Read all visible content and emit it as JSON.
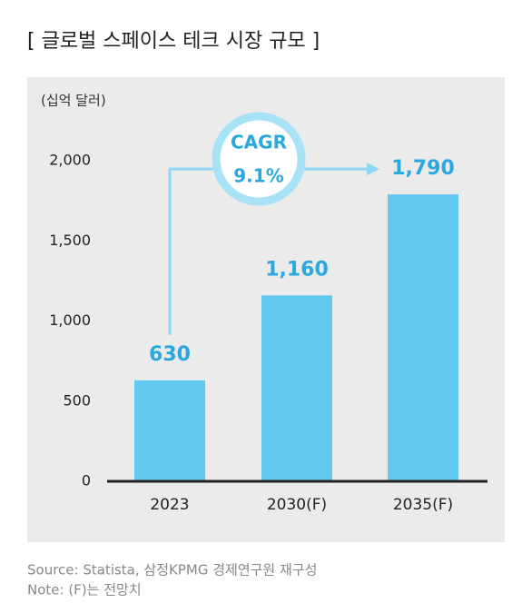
{
  "chart_data": {
    "type": "bar",
    "title": "[ 글로벌 스페이스 테크 시장 규모 ]",
    "y_label": "(십억 달러)",
    "categories": [
      "2023",
      "2030(F)",
      "2035(F)"
    ],
    "values": [
      630,
      1160,
      1790
    ],
    "value_labels": [
      "630",
      "1,160",
      "1,790"
    ],
    "color": "#62c8ef",
    "ylim": [
      0,
      2000
    ],
    "yticks": [
      0,
      500,
      {
        "value": 1000,
        "label": "1,000"
      },
      {
        "value": 1500,
        "label": "1,500"
      },
      {
        "value": 2000,
        "label": "2,000"
      }
    ],
    "grid": false,
    "annotation": {
      "title": "CAGR",
      "text": "9.1%"
    },
    "source": "Source: Statista, 삼정KPMG 경제연구원 재구성",
    "note": "Note: (F)는 전망치"
  }
}
